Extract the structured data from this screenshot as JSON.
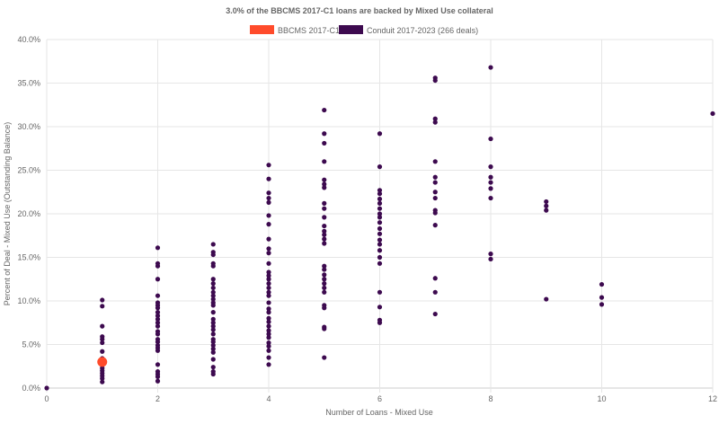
{
  "chart_data": {
    "type": "scatter",
    "title": "3.0% of the BBCMS 2017-C1 loans are backed by Mixed Use collateral",
    "xlabel": "Number of Loans - Mixed Use",
    "ylabel": "Percent of Deal - Mixed Use (Outstanding Balance)",
    "xlim": [
      0,
      12
    ],
    "ylim": [
      0,
      40
    ],
    "x_ticks": [
      "0",
      "2",
      "4",
      "6",
      "8",
      "10",
      "12"
    ],
    "y_ticks": [
      "0.0%",
      "5.0%",
      "10.0%",
      "15.0%",
      "20.0%",
      "25.0%",
      "30.0%",
      "35.0%",
      "40.0%"
    ],
    "grid": true,
    "legend_position": "top",
    "series": [
      {
        "name": "BBCMS 2017-C1",
        "color": "#ff4b2b",
        "points": [
          [
            1,
            3.0
          ]
        ]
      },
      {
        "name": "Conduit 2017-2023 (266 deals)",
        "color": "#3d0a4f",
        "points": [
          [
            0,
            0
          ],
          [
            1,
            10.1
          ],
          [
            1,
            9.4
          ],
          [
            1,
            7.1
          ],
          [
            1,
            5.9
          ],
          [
            1,
            5.6
          ],
          [
            1,
            5.2
          ],
          [
            1,
            4.2
          ],
          [
            1,
            3.4
          ],
          [
            1,
            2.7
          ],
          [
            1,
            2.3
          ],
          [
            1,
            2.0
          ],
          [
            1,
            1.7
          ],
          [
            1,
            1.4
          ],
          [
            1,
            1.1
          ],
          [
            1,
            0.7
          ],
          [
            2,
            16.1
          ],
          [
            2,
            14.3
          ],
          [
            2,
            14.0
          ],
          [
            2,
            12.5
          ],
          [
            2,
            10.6
          ],
          [
            2,
            9.8
          ],
          [
            2,
            9.5
          ],
          [
            2,
            9.2
          ],
          [
            2,
            8.7
          ],
          [
            2,
            8.3
          ],
          [
            2,
            7.9
          ],
          [
            2,
            7.5
          ],
          [
            2,
            7.1
          ],
          [
            2,
            6.5
          ],
          [
            2,
            6.2
          ],
          [
            2,
            5.6
          ],
          [
            2,
            5.3
          ],
          [
            2,
            4.9
          ],
          [
            2,
            4.6
          ],
          [
            2,
            4.3
          ],
          [
            2,
            2.7
          ],
          [
            2,
            1.9
          ],
          [
            2,
            1.6
          ],
          [
            2,
            1.3
          ],
          [
            2,
            0.8
          ],
          [
            3,
            16.5
          ],
          [
            3,
            15.6
          ],
          [
            3,
            15.3
          ],
          [
            3,
            14.3
          ],
          [
            3,
            14.0
          ],
          [
            3,
            12.5
          ],
          [
            3,
            12.0
          ],
          [
            3,
            11.5
          ],
          [
            3,
            11.0
          ],
          [
            3,
            10.6
          ],
          [
            3,
            10.2
          ],
          [
            3,
            9.8
          ],
          [
            3,
            9.5
          ],
          [
            3,
            8.7
          ],
          [
            3,
            7.9
          ],
          [
            3,
            7.5
          ],
          [
            3,
            7.1
          ],
          [
            3,
            6.7
          ],
          [
            3,
            6.2
          ],
          [
            3,
            5.6
          ],
          [
            3,
            5.3
          ],
          [
            3,
            4.9
          ],
          [
            3,
            4.5
          ],
          [
            3,
            4.1
          ],
          [
            3,
            3.3
          ],
          [
            3,
            2.4
          ],
          [
            3,
            1.9
          ],
          [
            3,
            1.6
          ],
          [
            4,
            25.6
          ],
          [
            4,
            24.0
          ],
          [
            4,
            22.4
          ],
          [
            4,
            21.8
          ],
          [
            4,
            21.3
          ],
          [
            4,
            19.8
          ],
          [
            4,
            18.8
          ],
          [
            4,
            17.1
          ],
          [
            4,
            16.0
          ],
          [
            4,
            15.5
          ],
          [
            4,
            14.3
          ],
          [
            4,
            13.3
          ],
          [
            4,
            12.9
          ],
          [
            4,
            12.5
          ],
          [
            4,
            12.0
          ],
          [
            4,
            11.5
          ],
          [
            4,
            11.0
          ],
          [
            4,
            10.6
          ],
          [
            4,
            9.8
          ],
          [
            4,
            9.1
          ],
          [
            4,
            8.7
          ],
          [
            4,
            8.0
          ],
          [
            4,
            7.6
          ],
          [
            4,
            7.1
          ],
          [
            4,
            6.6
          ],
          [
            4,
            6.2
          ],
          [
            4,
            5.8
          ],
          [
            4,
            5.2
          ],
          [
            4,
            4.8
          ],
          [
            4,
            4.3
          ],
          [
            4,
            3.5
          ],
          [
            4,
            2.7
          ],
          [
            5,
            31.9
          ],
          [
            5,
            29.2
          ],
          [
            5,
            28.1
          ],
          [
            5,
            26.0
          ],
          [
            5,
            23.9
          ],
          [
            5,
            23.4
          ],
          [
            5,
            23.0
          ],
          [
            5,
            21.2
          ],
          [
            5,
            20.6
          ],
          [
            5,
            19.6
          ],
          [
            5,
            18.6
          ],
          [
            5,
            18.0
          ],
          [
            5,
            17.6
          ],
          [
            5,
            17.1
          ],
          [
            5,
            16.6
          ],
          [
            5,
            14.0
          ],
          [
            5,
            13.6
          ],
          [
            5,
            13.0
          ],
          [
            5,
            12.5
          ],
          [
            5,
            12.0
          ],
          [
            5,
            11.5
          ],
          [
            5,
            11.0
          ],
          [
            5,
            9.5
          ],
          [
            5,
            9.2
          ],
          [
            5,
            7.0
          ],
          [
            5,
            6.8
          ],
          [
            5,
            3.5
          ],
          [
            6,
            29.2
          ],
          [
            6,
            25.4
          ],
          [
            6,
            22.7
          ],
          [
            6,
            22.3
          ],
          [
            6,
            21.7
          ],
          [
            6,
            21.2
          ],
          [
            6,
            20.6
          ],
          [
            6,
            20.0
          ],
          [
            6,
            19.6
          ],
          [
            6,
            19.0
          ],
          [
            6,
            18.3
          ],
          [
            6,
            17.7
          ],
          [
            6,
            17.0
          ],
          [
            6,
            16.5
          ],
          [
            6,
            15.8
          ],
          [
            6,
            15.0
          ],
          [
            6,
            14.3
          ],
          [
            6,
            11.0
          ],
          [
            6,
            9.3
          ],
          [
            6,
            7.8
          ],
          [
            6,
            7.5
          ],
          [
            7,
            35.6
          ],
          [
            7,
            35.3
          ],
          [
            7,
            30.9
          ],
          [
            7,
            30.5
          ],
          [
            7,
            26.0
          ],
          [
            7,
            24.2
          ],
          [
            7,
            23.6
          ],
          [
            7,
            22.5
          ],
          [
            7,
            21.8
          ],
          [
            7,
            20.4
          ],
          [
            7,
            20.1
          ],
          [
            7,
            18.7
          ],
          [
            7,
            12.6
          ],
          [
            7,
            11.0
          ],
          [
            7,
            8.5
          ],
          [
            8,
            36.8
          ],
          [
            8,
            28.6
          ],
          [
            8,
            25.4
          ],
          [
            8,
            24.2
          ],
          [
            8,
            23.6
          ],
          [
            8,
            22.9
          ],
          [
            8,
            21.8
          ],
          [
            8,
            15.4
          ],
          [
            8,
            14.8
          ],
          [
            9,
            21.4
          ],
          [
            9,
            20.9
          ],
          [
            9,
            20.4
          ],
          [
            9,
            10.2
          ],
          [
            10,
            11.9
          ],
          [
            10,
            10.4
          ],
          [
            10,
            9.6
          ],
          [
            12,
            31.5
          ]
        ]
      }
    ]
  }
}
